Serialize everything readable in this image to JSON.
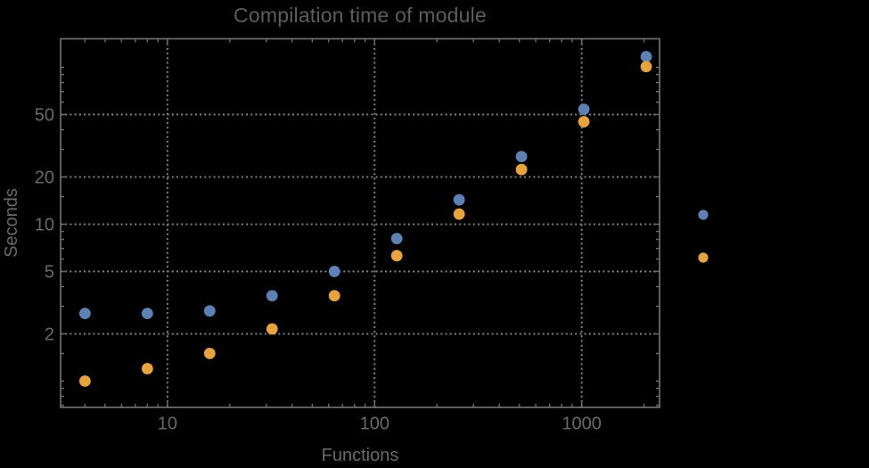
{
  "colors": {
    "background": "#000000",
    "frame": "#6e6e6e",
    "grid": "#878787",
    "title_text": "#5d5d5d",
    "label_text": "#696969",
    "series1": "#5E81B5",
    "series2": "#E8A33C"
  },
  "chart_data": {
    "type": "scatter",
    "title": "Compilation time of module",
    "xlabel": "Functions",
    "ylabel": "Seconds",
    "x_scale": "log",
    "y_scale": "log",
    "xlim": [
      3.05,
      2375
    ],
    "ylim": [
      0.68,
      152
    ],
    "grid": "dotted lines at major ticks, both axes",
    "x_ticks_major": [
      10,
      100,
      1000
    ],
    "x_ticks_minor": [
      4,
      5,
      6,
      7,
      8,
      9,
      20,
      30,
      40,
      50,
      60,
      70,
      80,
      90,
      200,
      300,
      400,
      500,
      600,
      700,
      800,
      900,
      2000
    ],
    "y_ticks_major": [
      2,
      5,
      10,
      20,
      50
    ],
    "y_ticks_minor": [
      0.7,
      0.8,
      0.9,
      1,
      1.5,
      3,
      4,
      6,
      7,
      8,
      9,
      15,
      30,
      40,
      60,
      70,
      80,
      90,
      100
    ],
    "x": [
      4,
      8,
      16,
      32,
      64,
      128,
      256,
      512,
      1024,
      2048
    ],
    "series": [
      {
        "name": "series-1",
        "color": "#5E81B5",
        "values": [
          2.7,
          2.7,
          2.8,
          3.5,
          5.0,
          8.1,
          14.3,
          27,
          54,
          117
        ]
      },
      {
        "name": "series-2",
        "color": "#E8A33C",
        "values": [
          1.0,
          1.2,
          1.5,
          2.15,
          3.5,
          6.3,
          11.6,
          22.3,
          45,
          101
        ]
      }
    ],
    "legend": {
      "position": "outside-right",
      "labels_visible": false,
      "markers": [
        {
          "series": "series-1",
          "color": "#5E81B5"
        },
        {
          "series": "series-2",
          "color": "#E8A33C"
        }
      ]
    }
  }
}
